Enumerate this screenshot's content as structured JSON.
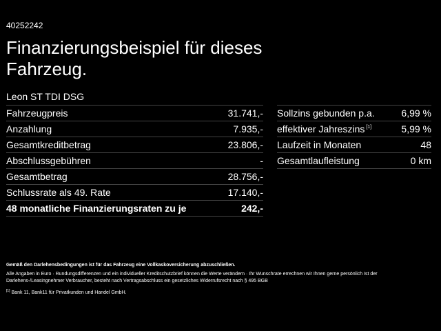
{
  "offer_id": "40252242",
  "title": "Finanzierungsbeispiel für dieses Fahrzeug.",
  "model": "Leon ST TDI DSG",
  "left_rows": [
    {
      "label": "Fahrzeugpreis",
      "value": "31.741,-",
      "bold": false
    },
    {
      "label": "Anzahlung",
      "value": "7.935,-",
      "bold": false
    },
    {
      "label": "Gesamtkreditbetrag",
      "value": "23.806,-",
      "bold": false
    },
    {
      "label": "Abschlussgebühren",
      "value": "-",
      "bold": false
    },
    {
      "label": "Gesamtbetrag",
      "value": "28.756,-",
      "bold": false
    },
    {
      "label": "Schlussrate als 49. Rate",
      "value": "17.140,-",
      "bold": false
    },
    {
      "label": "48 monatliche Finanzierungsraten zu je",
      "value": "242,-",
      "bold": true
    }
  ],
  "right_rows": [
    {
      "label": "Sollzins gebunden p.a.",
      "value": "6,99 %",
      "footnote": ""
    },
    {
      "label": "effektiver Jahreszins",
      "value": "5,99 %",
      "footnote": "[1]"
    },
    {
      "label": "Laufzeit in Monaten",
      "value": "48",
      "footnote": ""
    },
    {
      "label": "Gesamtlaufleistung",
      "value": "0 km",
      "footnote": ""
    }
  ],
  "notes": {
    "insurance": "Gemäß den Darlehensbedingungen ist für das Fahrzeug eine Vollkaskoversicherung abzuschließen.",
    "disclaimer": "Alle Angaben in Euro · Rundungsdifferenzen und ein individueller Kreditschutzbrief können die Werte verändern · Ihr Wunschrate errechnen wir Ihnen gerne persönlich Ist der Darlehens-/Leasingnehmer Verbraucher, besteht nach Vertragsabschluss ein gesetzliches Widerrufsrecht nach § 495 BGB",
    "footnote_mark": "[1]",
    "footnote_text": "Bank 11, Bank11 für Privatkunden und Handel GmbH."
  }
}
